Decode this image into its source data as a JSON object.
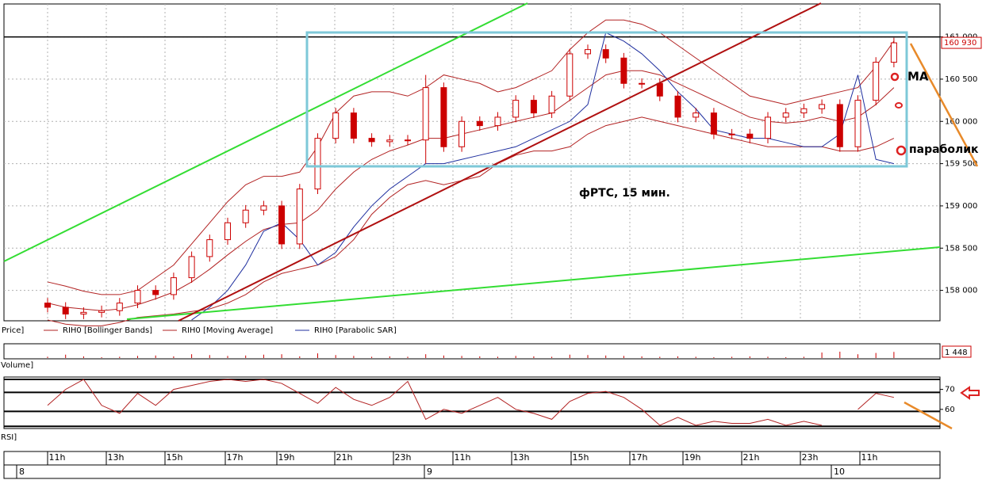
{
  "chart_data": [
    {
      "type": "candlestick",
      "legend": [
        "Price]",
        "RIH0 [Bollinger Bands]",
        "RIH0 [Moving Average]",
        "RIH0 [Parabolic SAR]"
      ],
      "annotations": [
        "фРТС,  15 мин.",
        "MA",
        "параболик"
      ],
      "last_price": 160930,
      "last_price_label": "160 930",
      "color_down": "#cc0000",
      "color_up": "#ffffff",
      "band_color": "#b22222",
      "sar_color": "#1f2f9f",
      "ylim": [
        157640,
        161390
      ],
      "yticks": [
        {
          "value": 161000,
          "label": "161 000"
        },
        {
          "value": 160500,
          "label": "160 500"
        },
        {
          "value": 160000,
          "label": "160 000"
        },
        {
          "value": 159500,
          "label": "159 500"
        },
        {
          "value": 159000,
          "label": "159 000"
        },
        {
          "value": 158500,
          "label": "158 500"
        },
        {
          "value": 158000,
          "label": "158 000"
        }
      ],
      "grid": true,
      "open": [
        157850,
        157800,
        157720,
        157740,
        157760,
        157850,
        158000,
        157950,
        158150,
        158400,
        158600,
        158800,
        158950,
        159000,
        158550,
        159200,
        159800,
        160100,
        159800,
        159760,
        159780,
        159780,
        160400,
        159700,
        160000,
        159950,
        160050,
        160250,
        160100,
        160300,
        160800,
        160850,
        160750,
        160450,
        160450,
        160300,
        160050,
        160100,
        159850,
        159850,
        159800,
        160050,
        160100,
        160150,
        160200,
        159700,
        160250,
        160700
      ],
      "high": [
        157910,
        157860,
        157800,
        157820,
        157910,
        158060,
        158060,
        158210,
        158460,
        158660,
        158860,
        159010,
        159060,
        159060,
        159260,
        159860,
        160160,
        160160,
        159860,
        159840,
        159840,
        160550,
        160460,
        160060,
        160060,
        160110,
        160310,
        160310,
        160360,
        160860,
        160910,
        160910,
        160810,
        160510,
        160510,
        160360,
        160160,
        160160,
        159910,
        159910,
        160110,
        160160,
        160210,
        160260,
        160260,
        160310,
        160760,
        160990
      ],
      "low": [
        157740,
        157660,
        157660,
        157680,
        157700,
        157790,
        157890,
        157890,
        158090,
        158340,
        158540,
        158740,
        158890,
        158490,
        158490,
        159140,
        159740,
        159740,
        159700,
        159700,
        159720,
        159500,
        159640,
        159640,
        159890,
        159890,
        159990,
        160040,
        160040,
        160240,
        160740,
        160690,
        160390,
        160390,
        160240,
        159990,
        159990,
        159790,
        159790,
        159740,
        159740,
        159990,
        160040,
        160090,
        159640,
        159640,
        160190,
        160640
      ],
      "close": [
        157800,
        157720,
        157740,
        157760,
        157850,
        158000,
        157950,
        158150,
        158400,
        158600,
        158800,
        158950,
        159000,
        158550,
        159200,
        159800,
        160100,
        159800,
        159760,
        159780,
        159780,
        160400,
        159700,
        160000,
        159950,
        160050,
        160250,
        160100,
        160300,
        160800,
        160850,
        160750,
        160450,
        160450,
        160300,
        160050,
        160100,
        159850,
        159850,
        159800,
        160050,
        160100,
        160150,
        160200,
        159700,
        160250,
        160700,
        160930
      ],
      "moving_average": [
        157850,
        157800,
        157780,
        157760,
        157780,
        157830,
        157900,
        157980,
        158100,
        158250,
        158420,
        158580,
        158720,
        158780,
        158800,
        158950,
        159200,
        159400,
        159550,
        159650,
        159720,
        159800,
        159800,
        159850,
        159900,
        159950,
        160000,
        160050,
        160100,
        160250,
        160400,
        160550,
        160600,
        160600,
        160550,
        160450,
        160350,
        160250,
        160150,
        160050,
        160000,
        159980,
        160000,
        160050,
        160000,
        160050,
        160200,
        160400
      ],
      "bollinger_upper": [
        158100,
        158050,
        157990,
        157950,
        157950,
        158000,
        158150,
        158300,
        158550,
        158800,
        159050,
        159250,
        159350,
        159350,
        159400,
        159700,
        160100,
        160300,
        160350,
        160350,
        160300,
        160400,
        160550,
        160500,
        160450,
        160350,
        160400,
        160500,
        160600,
        160850,
        161050,
        161200,
        161200,
        161150,
        161050,
        160900,
        160750,
        160600,
        160450,
        160300,
        160250,
        160200,
        160250,
        160300,
        160350,
        160400,
        160650,
        160950
      ],
      "bollinger_lower": [
        157650,
        157600,
        157580,
        157580,
        157620,
        157680,
        157700,
        157720,
        157750,
        157780,
        157850,
        157950,
        158100,
        158200,
        158250,
        158300,
        158400,
        158600,
        158900,
        159100,
        159250,
        159300,
        159250,
        159300,
        159350,
        159500,
        159600,
        159650,
        159650,
        159700,
        159850,
        159950,
        160000,
        160050,
        160000,
        159950,
        159900,
        159850,
        159800,
        159750,
        159700,
        159700,
        159700,
        159700,
        159650,
        159650,
        159700,
        159800
      ],
      "parabolic_sar": [
        null,
        null,
        null,
        null,
        null,
        null,
        null,
        null,
        157650,
        157800,
        158000,
        158300,
        158700,
        158800,
        158600,
        158300,
        158450,
        158750,
        159000,
        159200,
        159350,
        159500,
        159500,
        159550,
        159600,
        159650,
        159700,
        159800,
        159900,
        160000,
        160200,
        161050,
        160950,
        160800,
        160600,
        160350,
        160150,
        159900,
        159850,
        159800,
        159800,
        159750,
        159700,
        159700,
        159850,
        160550,
        159550,
        159500
      ]
    },
    {
      "type": "bar",
      "label": "Volume]",
      "last_value_label": "1 448",
      "color": "#cc0000",
      "ylim": [
        0,
        3000
      ],
      "values": [
        300,
        800,
        400,
        200,
        300,
        500,
        600,
        400,
        900,
        700,
        500,
        600,
        800,
        900,
        400,
        1100,
        700,
        500,
        300,
        400,
        300,
        900,
        600,
        500,
        400,
        300,
        500,
        400,
        300,
        800,
        700,
        600,
        500,
        400,
        300,
        400,
        300,
        200,
        300,
        400,
        300,
        200,
        300,
        1300,
        1500,
        900,
        1200,
        1448
      ]
    },
    {
      "type": "line",
      "label": "RSI]",
      "color": "#b22222",
      "ylim": [
        50.4,
        76.2
      ],
      "yticks": [
        60,
        70
      ],
      "levels": [
        75,
        68.5,
        59,
        51.5
      ],
      "values": [
        62,
        70,
        75,
        62,
        58,
        68,
        62,
        70,
        72,
        74,
        75,
        74,
        75,
        73,
        68,
        63,
        71,
        65,
        62,
        66,
        74,
        55,
        60,
        58,
        62,
        66,
        60,
        58,
        55,
        64,
        68,
        69,
        66,
        60,
        52,
        56,
        52,
        54,
        53,
        53,
        55,
        52,
        54,
        52,
        null,
        60,
        68,
        66
      ]
    }
  ],
  "time_axis": {
    "hours": [
      "11h",
      "13h",
      "15h",
      "17h",
      "19h",
      "21h",
      "23h",
      "11h",
      "13h",
      "15h",
      "17h",
      "19h",
      "21h",
      "23h",
      "11h"
    ],
    "days": [
      "8",
      "9",
      "10"
    ]
  }
}
